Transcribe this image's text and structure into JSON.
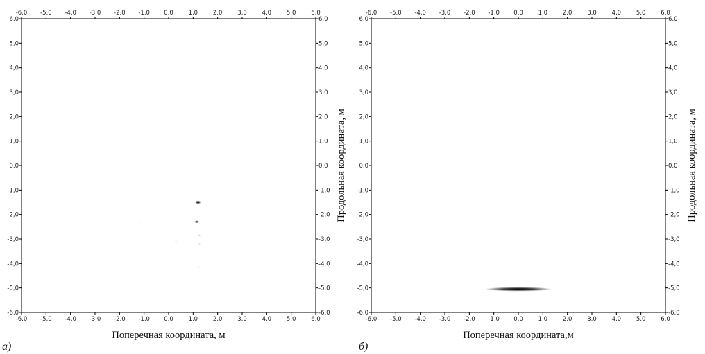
{
  "chart_data": [
    {
      "type": "heatmap",
      "panel_label": "а)",
      "xlabel": "Поперечная координата, м",
      "ylabel": "Продольная координата, м",
      "xlim": [
        -6,
        6
      ],
      "ylim": [
        -6,
        6
      ],
      "x_ticks": [
        "-6,0",
        "-5,0",
        "-4,0",
        "-3,0",
        "-2,0",
        "-1,0",
        "0,0",
        "1,0",
        "2,0",
        "3,0",
        "4,0",
        "5,0",
        "6,0"
      ],
      "y_ticks": [
        "6,0",
        "5,0",
        "4,0",
        "3,0",
        "2,0",
        "1,0",
        "0,0",
        "-1,0",
        "-2,0",
        "-3,0",
        "-4,0",
        "-5,0",
        "-6,0"
      ],
      "grid": false,
      "colormap": "grayscale (white = 0, black = max)",
      "features": [
        {
          "x": 1.2,
          "y": -1.5,
          "rx": 0.12,
          "ry": 0.07,
          "intensity": 1.0
        },
        {
          "x": 1.15,
          "y": -2.3,
          "rx": 0.1,
          "ry": 0.06,
          "intensity": 0.75
        },
        {
          "x": 1.25,
          "y": -2.85,
          "rx": 0.06,
          "ry": 0.05,
          "intensity": 0.15
        },
        {
          "x": 1.25,
          "y": -3.2,
          "rx": 0.06,
          "ry": 0.05,
          "intensity": 0.12
        },
        {
          "x": 0.3,
          "y": -3.1,
          "rx": 0.06,
          "ry": 0.04,
          "intensity": 0.08
        },
        {
          "x": 1.25,
          "y": -4.15,
          "rx": 0.05,
          "ry": 0.04,
          "intensity": 0.08
        },
        {
          "x": 1.1,
          "y": -0.85,
          "rx": 0.04,
          "ry": 0.04,
          "intensity": 0.06
        },
        {
          "x": -1.2,
          "y": -2.35,
          "rx": 0.05,
          "ry": 0.03,
          "intensity": 0.05
        }
      ]
    },
    {
      "type": "heatmap",
      "panel_label": "б)",
      "xlabel": "Поперечная координата,м",
      "ylabel": "Продольная координата, м",
      "xlim": [
        -6,
        6
      ],
      "ylim": [
        -6,
        6
      ],
      "x_ticks": [
        "-6,0",
        "-5,0",
        "-4,0",
        "-3,0",
        "-2,0",
        "-1,0",
        "0,0",
        "1,0",
        "2,0",
        "3,0",
        "4,0",
        "5,0",
        "6,0"
      ],
      "y_ticks": [
        "6,0",
        "5,0",
        "4,0",
        "3,0",
        "2,0",
        "1,0",
        "0,0",
        "-1,0",
        "-2,0",
        "-3,0",
        "-4,0",
        "-5,0",
        "-6,0"
      ],
      "grid": false,
      "colormap": "grayscale (white = 0, black = max)",
      "features": [
        {
          "x": 0.0,
          "y": -5.05,
          "rx": 1.35,
          "ry": 0.09,
          "intensity": 1.0
        }
      ]
    }
  ]
}
